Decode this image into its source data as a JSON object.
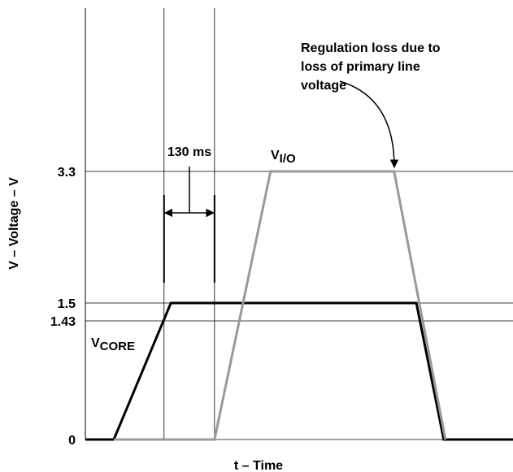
{
  "chart_data": {
    "type": "line",
    "xlabel": "t – Time",
    "ylabel": "V – Voltage – V",
    "xlim": [
      0,
      100
    ],
    "ylim": [
      0,
      3.3
    ],
    "yticks": [
      0,
      1.43,
      1.5,
      3.3
    ],
    "grid": true,
    "markers": [
      18.4,
      30.2
    ],
    "interval_label": "130 ms",
    "annotation": [
      "Regulation loss due to",
      "loss of primary line",
      "voltage"
    ],
    "series": [
      {
        "name": "VCORE",
        "color": "#000000",
        "x": [
          0,
          6.65,
          20,
          77.4,
          83.8,
          100
        ],
        "values": [
          0,
          0,
          1.5,
          1.5,
          0,
          0
        ]
      },
      {
        "name": "VI/O",
        "color": "#999999",
        "x": [
          6.65,
          30.2,
          43.3,
          72.2,
          84.2
        ],
        "values": [
          0,
          0,
          3.3,
          3.3,
          0
        ]
      }
    ]
  }
}
